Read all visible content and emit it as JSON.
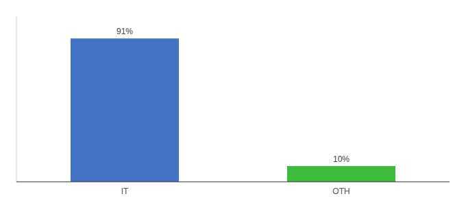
{
  "chart_data": {
    "type": "bar",
    "categories": [
      "IT",
      "OTH"
    ],
    "values": [
      91,
      10
    ],
    "value_labels": [
      "91%",
      "10%"
    ],
    "colors": [
      "#4472c4",
      "#3dbb3d"
    ],
    "ylim": [
      0,
      105
    ],
    "data_labels": true,
    "tick_labels": "x"
  }
}
